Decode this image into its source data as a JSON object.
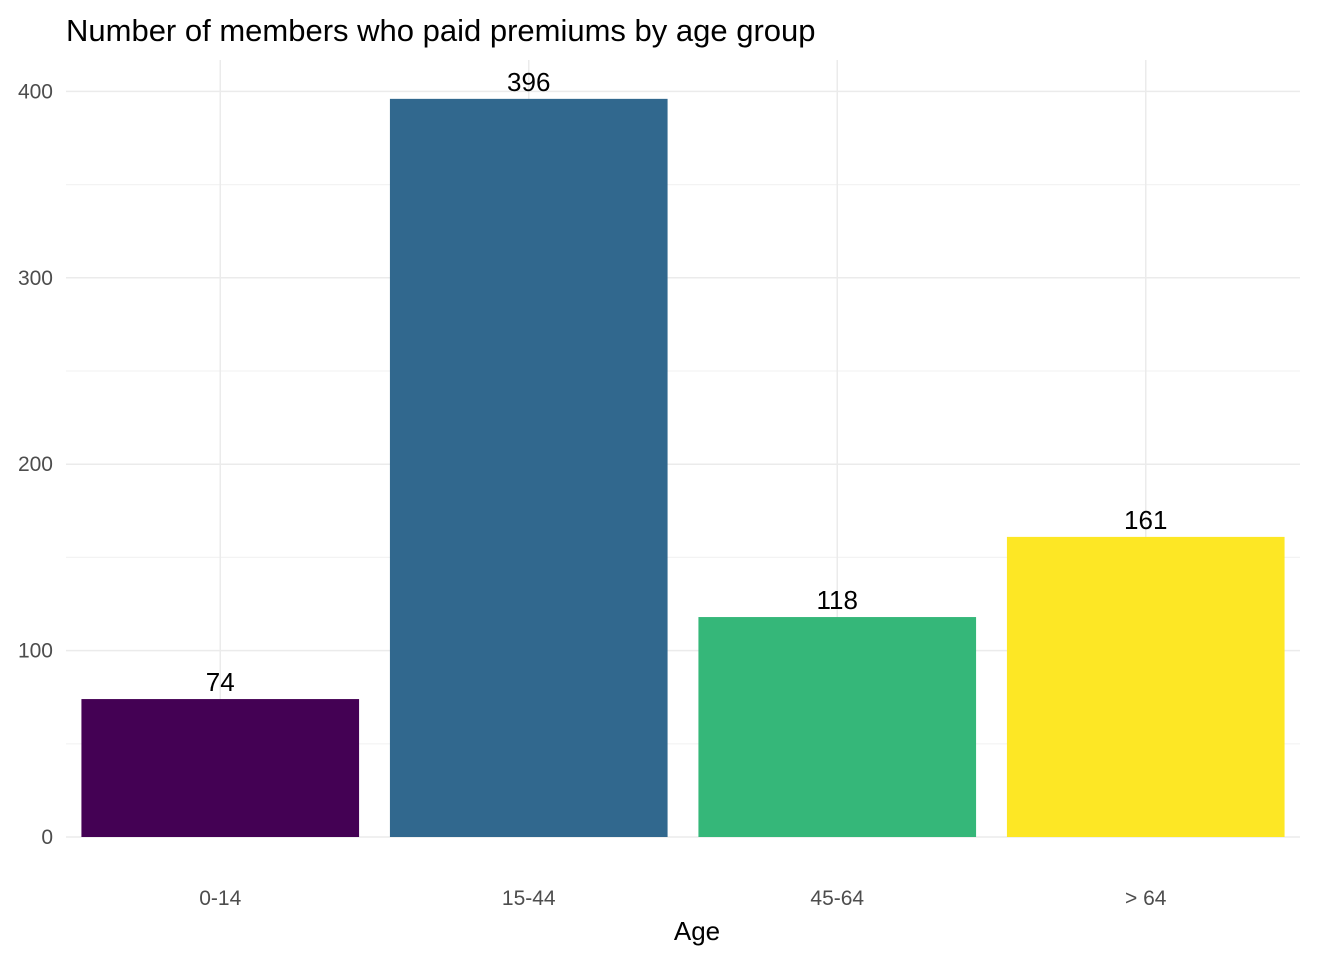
{
  "chart_data": {
    "type": "bar",
    "title": "Number of members who paid premiums by age group",
    "xlabel": "Age",
    "ylabel": "",
    "categories": [
      "0-14",
      "15-44",
      "45-64",
      "> 64"
    ],
    "values": [
      74,
      396,
      118,
      161
    ],
    "data_labels": [
      "74",
      "396",
      "118",
      "161"
    ],
    "colors": [
      "#440154",
      "#31688E",
      "#35B779",
      "#FDE725"
    ],
    "ylim": [
      0,
      415
    ],
    "yticks": [
      0,
      100,
      200,
      300,
      400
    ],
    "ytick_labels": [
      "0",
      "100",
      "200",
      "300",
      "400"
    ],
    "grid": true,
    "legend": "none"
  }
}
